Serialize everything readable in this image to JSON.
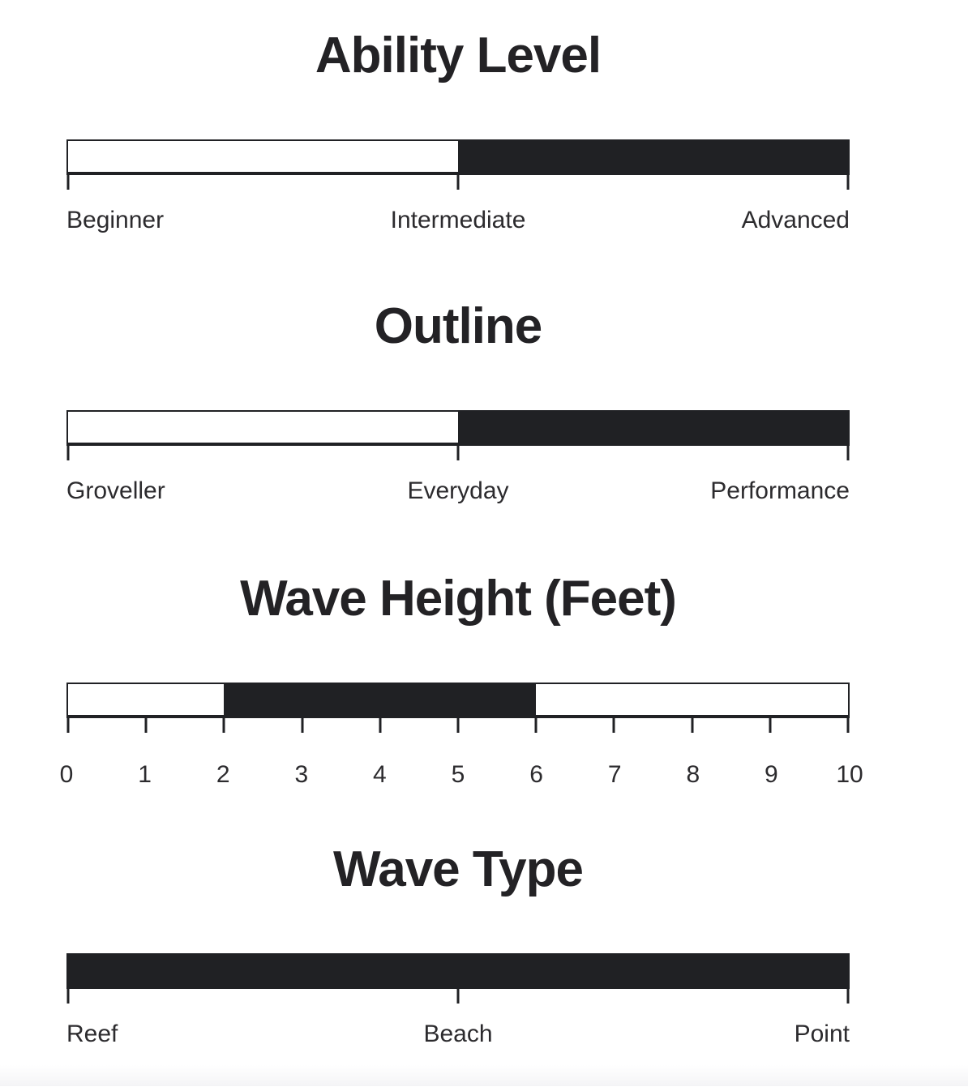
{
  "page": {
    "background_color": "#ffffff",
    "ink_color": "#202124",
    "title_color": "#232225",
    "label_color": "#2c2b2e"
  },
  "sections": [
    {
      "title": "Ability Level",
      "label_mode": "ends",
      "labels": [
        "Beginner",
        "Intermediate",
        "Advanced"
      ],
      "ticks_pct": [
        0,
        50,
        100
      ],
      "fill_start_pct": 50,
      "fill_end_pct": 100
    },
    {
      "title": "Outline",
      "label_mode": "ends",
      "labels": [
        "Groveller",
        "Everyday",
        "Performance"
      ],
      "ticks_pct": [
        0,
        50,
        100
      ],
      "fill_start_pct": 50,
      "fill_end_pct": 100
    },
    {
      "title": "Wave Height (Feet)",
      "label_mode": "scale",
      "labels": [
        "0",
        "1",
        "2",
        "3",
        "4",
        "5",
        "6",
        "7",
        "8",
        "9",
        "10"
      ],
      "ticks_pct": [
        0,
        10,
        20,
        30,
        40,
        50,
        60,
        70,
        80,
        90,
        100
      ],
      "fill_start_pct": 20,
      "fill_end_pct": 60
    },
    {
      "title": "Wave Type",
      "label_mode": "ends",
      "labels": [
        "Reef",
        "Beach",
        "Point"
      ],
      "ticks_pct": [
        0,
        50,
        100
      ],
      "fill_start_pct": 0,
      "fill_end_pct": 100
    }
  ],
  "chart_data": [
    {
      "type": "bar",
      "title": "Ability Level",
      "categories": [
        "Beginner",
        "Intermediate",
        "Advanced"
      ],
      "filled_range_pct": [
        50,
        100
      ],
      "filled_from": "Intermediate",
      "filled_to": "Advanced",
      "fill_color": "#202124",
      "grid": false,
      "legend": "none"
    },
    {
      "type": "bar",
      "title": "Outline",
      "categories": [
        "Groveller",
        "Everyday",
        "Performance"
      ],
      "filled_range_pct": [
        50,
        100
      ],
      "filled_from": "Everyday",
      "filled_to": "Performance",
      "fill_color": "#202124",
      "grid": false,
      "legend": "none"
    },
    {
      "type": "bar",
      "title": "Wave Height (Feet)",
      "xlim": [
        0,
        10
      ],
      "tick_labels": [
        "0",
        "1",
        "2",
        "3",
        "4",
        "5",
        "6",
        "7",
        "8",
        "9",
        "10"
      ],
      "filled_range": [
        2,
        6
      ],
      "fill_color": "#202124",
      "grid": false,
      "legend": "none"
    },
    {
      "type": "bar",
      "title": "Wave Type",
      "categories": [
        "Reef",
        "Beach",
        "Point"
      ],
      "filled_range_pct": [
        0,
        100
      ],
      "filled_from": "Reef",
      "filled_to": "Point",
      "fill_color": "#202124",
      "grid": false,
      "legend": "none"
    }
  ]
}
